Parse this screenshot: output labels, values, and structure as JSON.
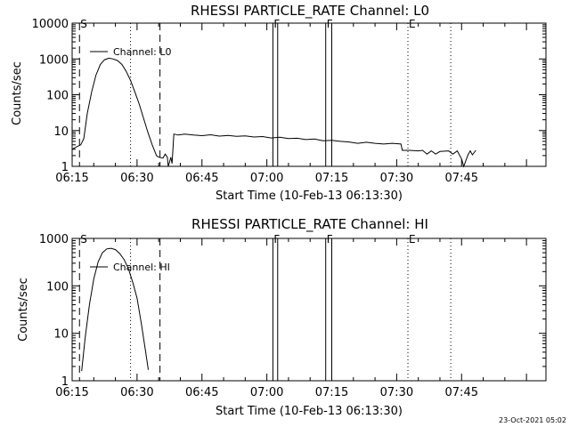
{
  "footer_timestamp": "23-Oct-2021 05:02",
  "chart_data": [
    {
      "type": "line",
      "title": "RHESSI PARTICLE_RATE Channel: L0",
      "xlabel": "Start Time (10-Feb-13 06:13:30)",
      "ylabel": "Counts/sec",
      "yscale": "log",
      "ylim": [
        1,
        10000
      ],
      "xlim_minutes": [
        375,
        484.5
      ],
      "x_tick_labels": [
        "06:15",
        "06:30",
        "06:45",
        "07:00",
        "07:15",
        "07:30",
        "07:45"
      ],
      "x_tick_minutes": [
        375,
        390,
        405,
        420,
        435,
        450,
        465
      ],
      "y_tick_labels": [
        "1",
        "10",
        "100",
        "1000",
        "10000"
      ],
      "y_tick_values": [
        1,
        10,
        100,
        1000,
        10000
      ],
      "legend": "Channel: L0",
      "series": [
        {
          "x_minutes": [
            375,
            376,
            377,
            377.7,
            378.5,
            379.5,
            380.5,
            381.5,
            382.5,
            383.5,
            384.5,
            385.5,
            386.5,
            387.5,
            388.5,
            389.5,
            390.5,
            391.5,
            392.5,
            393.5,
            394.5,
            395,
            396,
            396.5,
            397,
            397.2,
            397.5,
            397.8,
            398.1,
            398.5,
            399.5,
            401,
            403,
            405,
            407,
            409,
            411,
            413,
            415,
            417,
            419,
            421,
            423,
            425,
            427,
            429,
            431,
            433,
            435,
            437,
            439,
            441,
            443,
            445,
            447,
            449,
            451,
            451.3,
            453,
            455,
            456,
            457,
            458,
            459,
            460,
            462,
            463,
            464,
            465,
            465.5,
            466.5,
            467,
            467.5,
            468.3
          ],
          "values": [
            3,
            3.5,
            4,
            6,
            30,
            120,
            350,
            700,
            950,
            1050,
            1000,
            900,
            700,
            450,
            250,
            120,
            55,
            22,
            9,
            4,
            2,
            1.8,
            1.7,
            2.2,
            1.8,
            1,
            1.3,
            1.8,
            1.2,
            8,
            7.5,
            8,
            7.5,
            7.2,
            7.6,
            7,
            7.3,
            6.9,
            7.1,
            6.6,
            6.8,
            6.2,
            6.5,
            6,
            6.1,
            5.6,
            5.8,
            5.2,
            5.3,
            5,
            4.8,
            4.4,
            4.7,
            4.4,
            4.2,
            4.4,
            4.2,
            2.8,
            2.8,
            2.7,
            2.8,
            2.2,
            2.7,
            2.2,
            2.6,
            2.7,
            2.2,
            2.7,
            1.6,
            1,
            2.1,
            2.7,
            2.1,
            2.8
          ]
        }
      ],
      "markers": [
        {
          "label": "S",
          "x_minutes": 376.7,
          "style": "dashed"
        },
        {
          "label": "",
          "x_minutes": 388.5,
          "style": "dotted"
        },
        {
          "label": "",
          "x_minutes": 395.3,
          "style": "dashed"
        },
        {
          "label": "F",
          "x_minutes": 421.4,
          "style": "box"
        },
        {
          "label": "F",
          "x_minutes": 433.6,
          "style": "box"
        },
        {
          "label": "E",
          "x_minutes": 452.6,
          "style": "dotted"
        },
        {
          "label": "",
          "x_minutes": 462.5,
          "style": "dotted"
        }
      ],
      "flare_bands": [
        [
          421.4,
          422.5
        ],
        [
          433.6,
          435.0
        ]
      ]
    },
    {
      "type": "line",
      "title": "RHESSI PARTICLE_RATE Channel: HI",
      "xlabel": "Start Time (10-Feb-13 06:13:30)",
      "ylabel": "Counts/sec",
      "yscale": "log",
      "ylim": [
        1,
        1000
      ],
      "xlim_minutes": [
        375,
        484.5
      ],
      "x_tick_labels": [
        "06:15",
        "06:30",
        "06:45",
        "07:00",
        "07:15",
        "07:30",
        "07:45"
      ],
      "x_tick_minutes": [
        375,
        390,
        405,
        420,
        435,
        450,
        465
      ],
      "y_tick_labels": [
        "1",
        "10",
        "100",
        "1000"
      ],
      "y_tick_values": [
        1,
        10,
        100,
        1000
      ],
      "legend": "Channel: HI",
      "series": [
        {
          "x_minutes": [
            377.2,
            378,
            379,
            380,
            381,
            382,
            383,
            384,
            385,
            386,
            387,
            388,
            389,
            390,
            391,
            392,
            392.6
          ],
          "values": [
            1.6,
            8,
            40,
            140,
            320,
            500,
            600,
            620,
            580,
            480,
            360,
            230,
            120,
            55,
            16,
            4,
            1.7
          ]
        }
      ],
      "markers": [
        {
          "label": "S",
          "x_minutes": 376.7,
          "style": "dashed"
        },
        {
          "label": "",
          "x_minutes": 388.5,
          "style": "dotted"
        },
        {
          "label": "",
          "x_minutes": 395.3,
          "style": "dashed"
        },
        {
          "label": "F",
          "x_minutes": 421.4,
          "style": "box"
        },
        {
          "label": "F",
          "x_minutes": 433.6,
          "style": "box"
        },
        {
          "label": "E",
          "x_minutes": 452.6,
          "style": "dotted"
        },
        {
          "label": "",
          "x_minutes": 462.5,
          "style": "dotted"
        }
      ],
      "flare_bands": [
        [
          421.4,
          422.5
        ],
        [
          433.6,
          435.0
        ]
      ]
    }
  ]
}
